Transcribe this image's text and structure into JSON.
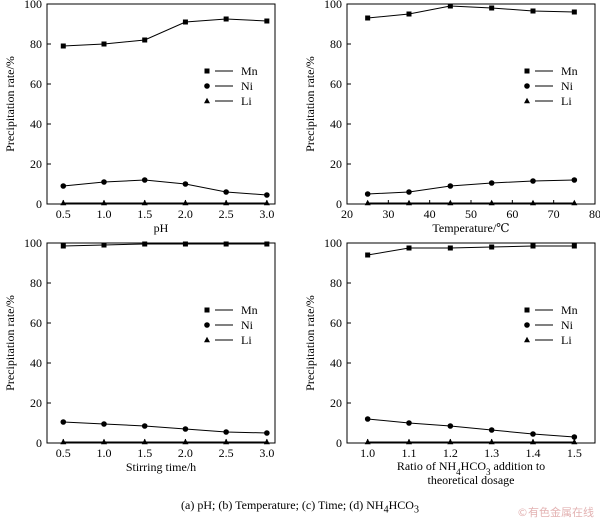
{
  "caption": "(a) pH; (b) Temperature; (c) Time; (d) NH4HCO3",
  "watermark": "©有色金属在线",
  "chart_data": [
    {
      "panel": "a",
      "type": "line",
      "xlabel": "pH",
      "ylabel": "Precipitation rate/%",
      "xlim": [
        0.3,
        3.1
      ],
      "ylim": [
        0,
        100
      ],
      "xticks": [
        "0.5",
        "1.0",
        "1.5",
        "2.0",
        "2.5",
        "3.0"
      ],
      "yticks": [
        "0",
        "20",
        "40",
        "60",
        "80",
        "100"
      ],
      "legend": "right-middle",
      "x": [
        0.5,
        1.0,
        1.5,
        2.0,
        2.5,
        3.0
      ],
      "series": [
        {
          "name": "Mn",
          "marker": "square",
          "values": [
            79,
            80,
            82,
            91,
            92.5,
            91.5
          ]
        },
        {
          "name": "Ni",
          "marker": "circle",
          "values": [
            9,
            11,
            12,
            10,
            6,
            4.5
          ]
        },
        {
          "name": "Li",
          "marker": "triangle",
          "values": [
            0.5,
            0.5,
            0.5,
            0.5,
            0.5,
            0.5
          ]
        }
      ]
    },
    {
      "panel": "b",
      "type": "line",
      "xlabel": "Temperature/℃",
      "ylabel": "Precipitation rate/%",
      "xlim": [
        20,
        80
      ],
      "ylim": [
        0,
        100
      ],
      "xticks": [
        "20",
        "30",
        "40",
        "50",
        "60",
        "70",
        "80"
      ],
      "yticks": [
        "0",
        "20",
        "40",
        "60",
        "80",
        "100"
      ],
      "legend": "right-middle",
      "x": [
        25,
        35,
        45,
        55,
        65,
        75
      ],
      "series": [
        {
          "name": "Mn",
          "marker": "square",
          "values": [
            93,
            95,
            99,
            98,
            96.5,
            96
          ]
        },
        {
          "name": "Ni",
          "marker": "circle",
          "values": [
            5,
            6,
            9,
            10.5,
            11.5,
            12
          ]
        },
        {
          "name": "Li",
          "marker": "triangle",
          "values": [
            0.5,
            0.5,
            0.5,
            0.5,
            0.5,
            0.5
          ]
        }
      ]
    },
    {
      "panel": "c",
      "type": "line",
      "xlabel": "Stirring time/h",
      "ylabel": "Precipitation rate/%",
      "xlim": [
        0.3,
        3.1
      ],
      "ylim": [
        0,
        100
      ],
      "xticks": [
        "0.5",
        "1.0",
        "1.5",
        "2.0",
        "2.5",
        "3.0"
      ],
      "yticks": [
        "0",
        "20",
        "40",
        "60",
        "80",
        "100"
      ],
      "legend": "right-middle",
      "x": [
        0.5,
        1.0,
        1.5,
        2.0,
        2.5,
        3.0
      ],
      "series": [
        {
          "name": "Mn",
          "marker": "square",
          "values": [
            98.5,
            99,
            99.5,
            99.5,
            99.5,
            99.5
          ]
        },
        {
          "name": "Ni",
          "marker": "circle",
          "values": [
            10.5,
            9.5,
            8.5,
            7,
            5.5,
            5
          ]
        },
        {
          "name": "Li",
          "marker": "triangle",
          "values": [
            0.5,
            0.5,
            0.5,
            0.5,
            0.5,
            0.5
          ]
        }
      ]
    },
    {
      "panel": "d",
      "type": "line",
      "xlabel_line1": "Ratio of NH4HCO3 addition to",
      "xlabel_line2": "theoretical dosage",
      "ylabel": "Precipitation rate/%",
      "xlim": [
        0.95,
        1.55
      ],
      "ylim": [
        0,
        100
      ],
      "xticks": [
        "1.0",
        "1.1",
        "1.2",
        "1.3",
        "1.4",
        "1.5"
      ],
      "yticks": [
        "0",
        "20",
        "40",
        "60",
        "80",
        "100"
      ],
      "legend": "right-middle",
      "x": [
        1.0,
        1.1,
        1.2,
        1.3,
        1.4,
        1.5
      ],
      "series": [
        {
          "name": "Mn",
          "marker": "square",
          "values": [
            94,
            97.5,
            97.5,
            98,
            98.5,
            98.5
          ]
        },
        {
          "name": "Ni",
          "marker": "circle",
          "values": [
            12,
            10,
            8.5,
            6.5,
            4.5,
            3
          ]
        },
        {
          "name": "Li",
          "marker": "triangle",
          "values": [
            0.5,
            0.5,
            0.5,
            0.5,
            0.5,
            0.5
          ]
        }
      ]
    }
  ]
}
